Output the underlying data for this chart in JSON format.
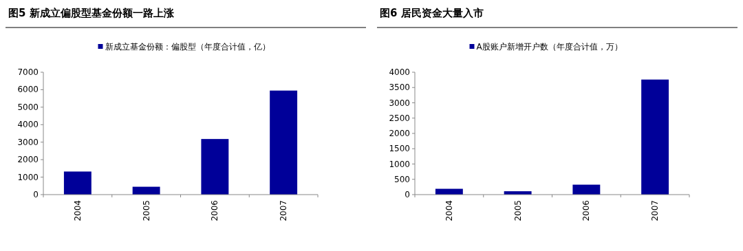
{
  "chart_data": [
    {
      "type": "bar",
      "title": "图5  新成立偏股型基金份额一路上涨",
      "categories": [
        "2004",
        "2005",
        "2006",
        "2007"
      ],
      "series": [
        {
          "name": "新成立基金份额：偏股型（年度合计值，亿）",
          "color": "#000099",
          "values": [
            1320,
            450,
            3180,
            5950
          ]
        }
      ],
      "ylim": [
        0,
        7000
      ],
      "yticks": [
        0,
        1000,
        2000,
        3000,
        4000,
        5000,
        6000,
        7000
      ],
      "legend": "top",
      "grid": false
    },
    {
      "type": "bar",
      "title": "图6  居民资金大量入市",
      "categories": [
        "2004",
        "2005",
        "2006",
        "2007"
      ],
      "series": [
        {
          "name": "A股账户新增开户数（年度合计值，万）",
          "color": "#000099",
          "values": [
            190,
            110,
            325,
            3760
          ]
        }
      ],
      "ylim": [
        0,
        4000
      ],
      "yticks": [
        0,
        500,
        1000,
        1500,
        2000,
        2500,
        3000,
        3500,
        4000
      ],
      "legend": "top",
      "grid": false
    }
  ]
}
